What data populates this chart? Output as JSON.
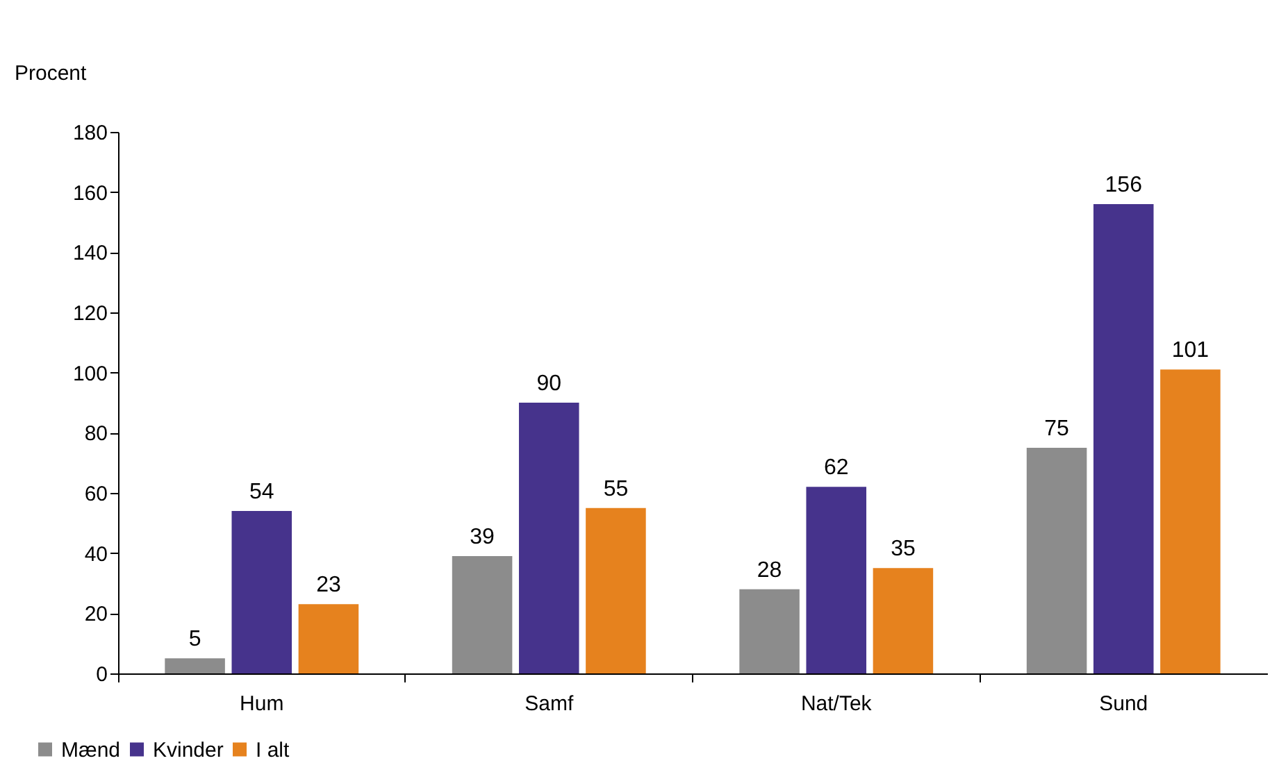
{
  "chart_data": {
    "type": "bar",
    "ylabel": "Procent",
    "categories": [
      "Hum",
      "Samf",
      "Nat/Tek",
      "Sund"
    ],
    "series": [
      {
        "name": "Mænd",
        "color": "#8c8c8c",
        "values": [
          5,
          39,
          28,
          75
        ]
      },
      {
        "name": "Kvinder",
        "color": "#46338c",
        "values": [
          54,
          90,
          62,
          156
        ]
      },
      {
        "name": "I alt",
        "color": "#e6821e",
        "values": [
          23,
          55,
          35,
          101
        ]
      }
    ],
    "ylim": [
      0,
      180
    ],
    "yticks": [
      0,
      20,
      40,
      60,
      80,
      100,
      120,
      140,
      160,
      180
    ],
    "data_labels": true,
    "grid": false,
    "legend": "bottom left"
  }
}
